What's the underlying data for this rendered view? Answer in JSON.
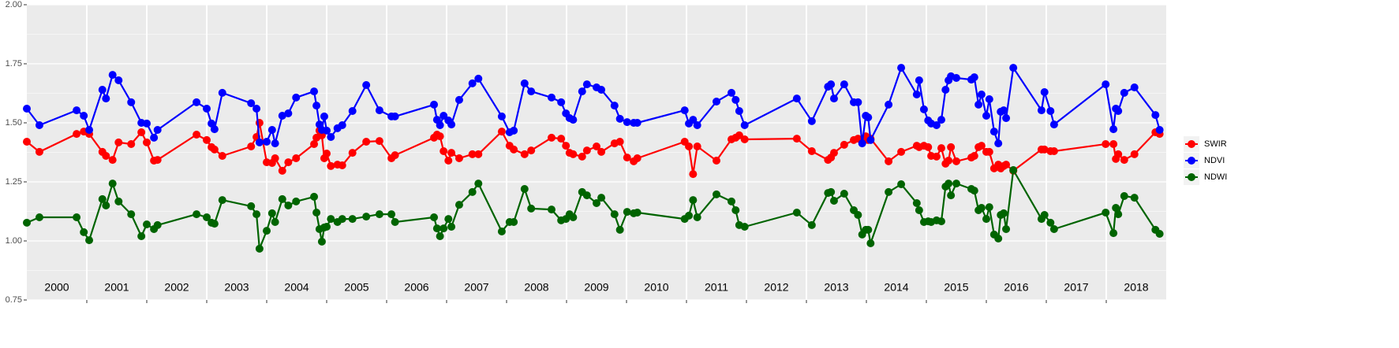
{
  "chart_data": {
    "type": "line",
    "xlim": [
      2000,
      2019
    ],
    "ylim": [
      0.75,
      2.0
    ],
    "yticks": [
      0.75,
      {
        "value": 1.0,
        "label": "1.00"
      },
      1.25,
      {
        "value": 1.5,
        "label": "1.50"
      },
      1.75,
      {
        "value": 2.0,
        "label": "2.00"
      }
    ],
    "xticks": [
      {
        "value": 2000.5,
        "label": "2000"
      },
      {
        "value": 2001.5,
        "label": "2001"
      },
      {
        "value": 2002.5,
        "label": "2002"
      },
      {
        "value": 2003.5,
        "label": "2003"
      },
      {
        "value": 2004.5,
        "label": "2004"
      },
      {
        "value": 2005.5,
        "label": "2005"
      },
      {
        "value": 2006.5,
        "label": "2006"
      },
      {
        "value": 2007.5,
        "label": "2007"
      },
      {
        "value": 2008.5,
        "label": "2008"
      },
      {
        "value": 2009.5,
        "label": "2009"
      },
      {
        "value": 2010.5,
        "label": "2010"
      },
      {
        "value": 2011.5,
        "label": "2011"
      },
      {
        "value": 2012.5,
        "label": "2012"
      },
      {
        "value": 2013.5,
        "label": "2013"
      },
      {
        "value": 2014.5,
        "label": "2014"
      },
      {
        "value": 2015.5,
        "label": "2015"
      },
      {
        "value": 2016.5,
        "label": "2016"
      },
      {
        "value": 2017.5,
        "label": "2017"
      },
      {
        "value": 2018.5,
        "label": "2018"
      }
    ],
    "year_lines": [
      2001,
      2002,
      2003,
      2004,
      2005,
      2006,
      2007,
      2008,
      2009,
      2010,
      2011,
      2012,
      2013,
      2014,
      2015,
      2016,
      2017,
      2018
    ],
    "grid": true,
    "legend": "right",
    "x": [
      2000.0,
      2000.21,
      2000.83,
      2000.95,
      2001.04,
      2001.26,
      2001.32,
      2001.43,
      2001.53,
      2001.74,
      2001.91,
      2002.0,
      2002.12,
      2002.18,
      2002.83,
      2003.0,
      2003.08,
      2003.13,
      2003.26,
      2003.74,
      2003.83,
      2003.88,
      2004.0,
      2004.09,
      2004.14,
      2004.26,
      2004.36,
      2004.49,
      2004.79,
      2004.83,
      2004.88,
      2004.92,
      2004.96,
      2005.0,
      2005.07,
      2005.18,
      2005.26,
      2005.43,
      2005.66,
      2005.88,
      2006.08,
      2006.14,
      2006.79,
      2006.84,
      2006.89,
      2006.95,
      2007.03,
      2007.08,
      2007.21,
      2007.43,
      2007.53,
      2007.92,
      2008.05,
      2008.12,
      2008.3,
      2008.41,
      2008.75,
      2008.91,
      2008.99,
      2009.05,
      2009.11,
      2009.26,
      2009.34,
      2009.5,
      2009.58,
      2009.8,
      2009.89,
      2010.01,
      2010.12,
      2010.18,
      2010.97,
      2011.04,
      2011.11,
      2011.18,
      2011.5,
      2011.75,
      2011.82,
      2011.88,
      2011.97,
      2012.84,
      2013.09,
      2013.36,
      2013.41,
      2013.46,
      2013.63,
      2013.79,
      2013.86,
      2013.93,
      2013.99,
      2014.03,
      2014.07,
      2014.37,
      2014.58,
      2014.84,
      2014.88,
      2014.96,
      2015.03,
      2015.08,
      2015.17,
      2015.25,
      2015.32,
      2015.37,
      2015.41,
      2015.5,
      2015.75,
      2015.8,
      2015.87,
      2015.92,
      2016.0,
      2016.05,
      2016.13,
      2016.2,
      2016.24,
      2016.29,
      2016.33,
      2016.45,
      2016.92,
      2016.97,
      2017.07,
      2017.13,
      2017.99,
      2018.12,
      2018.16,
      2018.2,
      2018.3,
      2018.47,
      2018.82,
      2018.89
    ],
    "series": [
      {
        "name": "SWIR",
        "color": "#ff0000",
        "values": [
          1.42,
          1.377,
          1.453,
          1.463,
          1.453,
          1.377,
          1.36,
          1.343,
          1.417,
          1.41,
          1.46,
          1.417,
          1.34,
          1.343,
          1.45,
          1.427,
          1.397,
          1.387,
          1.36,
          1.4,
          1.44,
          1.5,
          1.333,
          1.33,
          1.35,
          1.297,
          1.333,
          1.35,
          1.41,
          1.437,
          1.467,
          1.447,
          1.35,
          1.37,
          1.317,
          1.323,
          1.32,
          1.373,
          1.42,
          1.423,
          1.35,
          1.363,
          1.437,
          1.45,
          1.443,
          1.38,
          1.34,
          1.373,
          1.35,
          1.367,
          1.367,
          1.463,
          1.403,
          1.387,
          1.367,
          1.383,
          1.437,
          1.433,
          1.403,
          1.373,
          1.367,
          1.357,
          1.383,
          1.4,
          1.377,
          1.413,
          1.42,
          1.353,
          1.337,
          1.35,
          1.42,
          1.4,
          1.283,
          1.4,
          1.34,
          1.43,
          1.437,
          1.447,
          1.43,
          1.433,
          1.38,
          1.343,
          1.353,
          1.373,
          1.407,
          1.427,
          1.433,
          1.42,
          1.443,
          1.427,
          1.433,
          1.337,
          1.377,
          1.403,
          1.397,
          1.403,
          1.397,
          1.36,
          1.357,
          1.393,
          1.327,
          1.34,
          1.397,
          1.337,
          1.353,
          1.36,
          1.397,
          1.403,
          1.377,
          1.377,
          1.307,
          1.323,
          1.307,
          1.317,
          1.323,
          1.297,
          1.387,
          1.387,
          1.38,
          1.38,
          1.41,
          1.41,
          1.347,
          1.367,
          1.343,
          1.367,
          1.46,
          1.453
        ]
      },
      {
        "name": "NDVI",
        "color": "#0000ff",
        "values": [
          1.56,
          1.49,
          1.553,
          1.53,
          1.47,
          1.64,
          1.603,
          1.703,
          1.68,
          1.587,
          1.5,
          1.497,
          1.437,
          1.47,
          1.587,
          1.56,
          1.497,
          1.473,
          1.627,
          1.583,
          1.56,
          1.417,
          1.42,
          1.47,
          1.413,
          1.53,
          1.54,
          1.607,
          1.633,
          1.573,
          1.493,
          1.47,
          1.527,
          1.467,
          1.44,
          1.477,
          1.49,
          1.55,
          1.66,
          1.553,
          1.527,
          1.527,
          1.577,
          1.513,
          1.49,
          1.53,
          1.51,
          1.493,
          1.597,
          1.667,
          1.687,
          1.527,
          1.46,
          1.467,
          1.667,
          1.633,
          1.607,
          1.587,
          1.54,
          1.52,
          1.513,
          1.633,
          1.663,
          1.65,
          1.64,
          1.573,
          1.517,
          1.503,
          1.5,
          1.5,
          1.553,
          1.497,
          1.513,
          1.49,
          1.59,
          1.627,
          1.597,
          1.55,
          1.49,
          1.603,
          1.507,
          1.653,
          1.663,
          1.603,
          1.663,
          1.587,
          1.587,
          1.413,
          1.53,
          1.523,
          1.427,
          1.577,
          1.733,
          1.62,
          1.68,
          1.557,
          1.51,
          1.497,
          1.49,
          1.513,
          1.64,
          1.68,
          1.697,
          1.69,
          1.683,
          1.693,
          1.577,
          1.62,
          1.53,
          1.6,
          1.463,
          1.413,
          1.547,
          1.553,
          1.52,
          1.733,
          1.553,
          1.63,
          1.55,
          1.493,
          1.663,
          1.473,
          1.56,
          1.55,
          1.627,
          1.65,
          1.533,
          1.47
        ]
      },
      {
        "name": "NDWI",
        "color": "#006400",
        "values": [
          1.077,
          1.1,
          1.1,
          1.037,
          1.003,
          1.177,
          1.15,
          1.243,
          1.167,
          1.113,
          1.02,
          1.07,
          1.05,
          1.067,
          1.113,
          1.1,
          1.077,
          1.073,
          1.173,
          1.147,
          1.113,
          0.967,
          1.043,
          1.117,
          1.08,
          1.177,
          1.15,
          1.167,
          1.187,
          1.12,
          1.05,
          0.997,
          1.057,
          1.06,
          1.093,
          1.08,
          1.093,
          1.093,
          1.103,
          1.113,
          1.113,
          1.08,
          1.1,
          1.053,
          1.02,
          1.053,
          1.093,
          1.06,
          1.153,
          1.207,
          1.243,
          1.04,
          1.08,
          1.08,
          1.22,
          1.137,
          1.133,
          1.087,
          1.093,
          1.113,
          1.1,
          1.207,
          1.193,
          1.16,
          1.183,
          1.113,
          1.047,
          1.123,
          1.117,
          1.12,
          1.093,
          1.107,
          1.173,
          1.1,
          1.197,
          1.167,
          1.13,
          1.067,
          1.06,
          1.12,
          1.067,
          1.203,
          1.207,
          1.17,
          1.2,
          1.13,
          1.11,
          1.027,
          1.047,
          1.047,
          0.99,
          1.207,
          1.24,
          1.16,
          1.13,
          1.08,
          1.083,
          1.08,
          1.087,
          1.083,
          1.23,
          1.243,
          1.193,
          1.243,
          1.22,
          1.213,
          1.13,
          1.14,
          1.093,
          1.143,
          1.027,
          1.01,
          1.11,
          1.117,
          1.05,
          1.3,
          1.093,
          1.11,
          1.077,
          1.05,
          1.12,
          1.033,
          1.14,
          1.113,
          1.19,
          1.183,
          1.047,
          1.03
        ]
      }
    ]
  }
}
